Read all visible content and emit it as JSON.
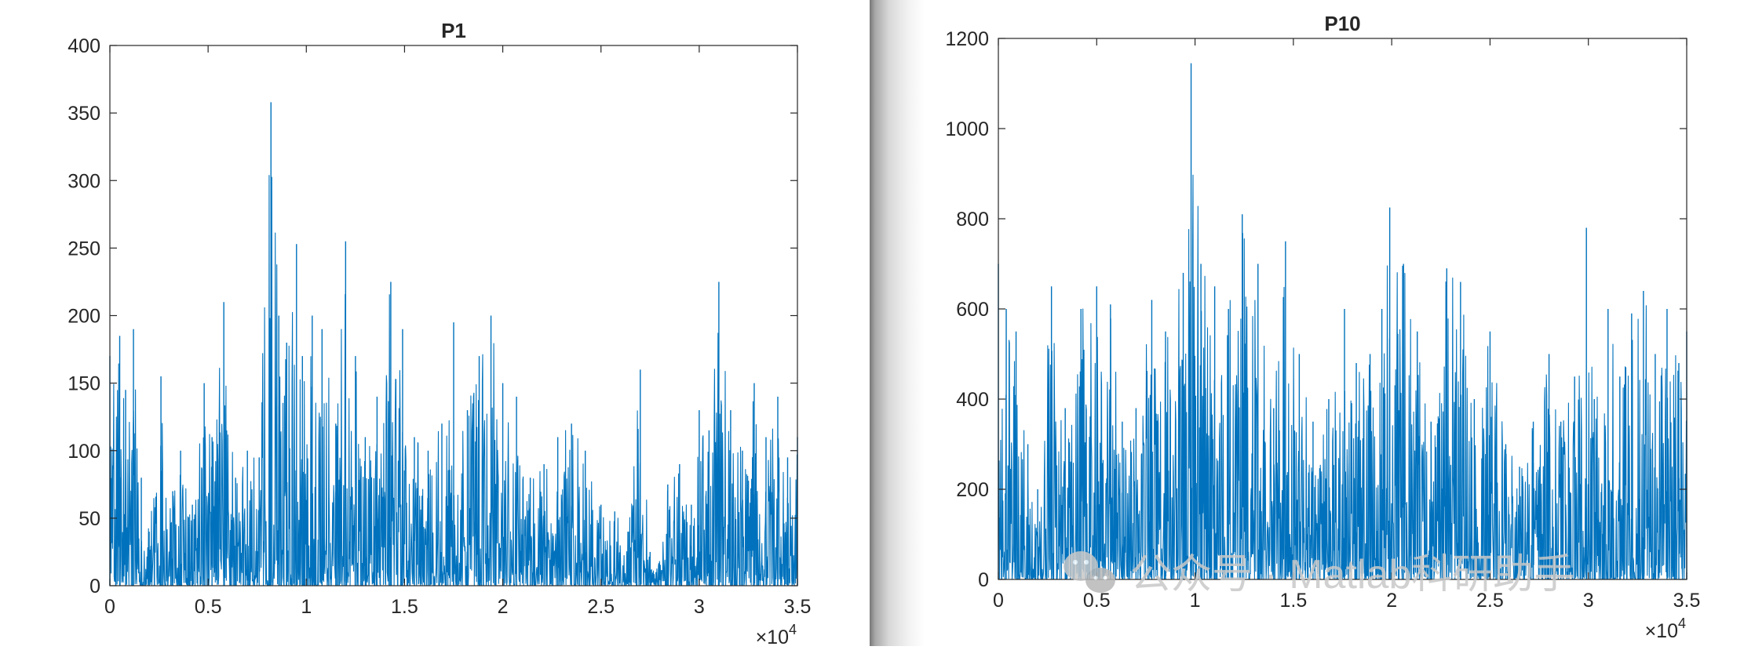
{
  "chart_data": [
    {
      "type": "line",
      "title": "P1",
      "xlabel": "",
      "ylabel": "",
      "xlim": [
        0,
        35000
      ],
      "ylim": [
        0,
        400
      ],
      "x_tick_labels": [
        "0",
        "0.5",
        "1",
        "1.5",
        "2",
        "2.5",
        "3",
        "3.5"
      ],
      "x_tick_values": [
        0,
        5000,
        10000,
        15000,
        20000,
        25000,
        30000,
        35000
      ],
      "x_exponent_label": "×10",
      "x_exponent_power": "4",
      "y_tick_labels": [
        "0",
        "50",
        "100",
        "150",
        "200",
        "250",
        "300",
        "350",
        "400"
      ],
      "y_tick_values": [
        0,
        50,
        100,
        150,
        200,
        250,
        300,
        350,
        400
      ],
      "grid": false,
      "color": "#0072BD",
      "series": [
        {
          "x": [
            0,
            500,
            800,
            1200,
            1600,
            2000,
            2600,
            3200,
            3600,
            4200,
            4800,
            5200,
            5800,
            6400,
            7000,
            7600,
            8200,
            8600,
            9000,
            9500,
            9800,
            10300,
            10800,
            11500,
            12000,
            12500,
            13000,
            13600,
            14300,
            14900,
            15500,
            16200,
            16900,
            17500,
            18200,
            18800,
            19400,
            20000,
            20700,
            21400,
            22100,
            22800,
            23500,
            24200,
            25000,
            25700,
            26400,
            27000,
            27500,
            27800,
            28400,
            29000,
            29600,
            30000,
            30500,
            31000,
            31600,
            32200,
            32800,
            33400,
            34000,
            34500,
            35000
          ],
          "y": [
            170,
            185,
            145,
            190,
            80,
            40,
            155,
            70,
            100,
            60,
            150,
            110,
            210,
            80,
            100,
            95,
            358,
            200,
            180,
            253,
            170,
            200,
            190,
            120,
            255,
            170,
            110,
            140,
            225,
            190,
            110,
            100,
            120,
            195,
            130,
            170,
            200,
            150,
            140,
            80,
            90,
            110,
            120,
            100,
            60,
            55,
            40,
            160,
            25,
            10,
            75,
            90,
            60,
            130,
            115,
            225,
            130,
            100,
            150,
            110,
            140,
            95,
            110
          ]
        }
      ]
    },
    {
      "type": "line",
      "title": "P10",
      "xlabel": "",
      "ylabel": "",
      "xlim": [
        0,
        35000
      ],
      "ylim": [
        0,
        1200
      ],
      "x_tick_labels": [
        "0",
        "0.5",
        "1",
        "1.5",
        "2",
        "2.5",
        "3",
        "3.5"
      ],
      "x_tick_values": [
        0,
        5000,
        10000,
        15000,
        20000,
        25000,
        30000,
        35000
      ],
      "x_exponent_label": "×10",
      "x_exponent_power": "4",
      "y_tick_labels": [
        "0",
        "200",
        "400",
        "600",
        "800",
        "1000",
        "1200"
      ],
      "y_tick_values": [
        0,
        200,
        400,
        600,
        800,
        1000,
        1200
      ],
      "grid": false,
      "color": "#0072BD",
      "series": [
        {
          "x": [
            0,
            400,
            900,
            1500,
            2000,
            2700,
            3400,
            4200,
            5000,
            5700,
            6300,
            7000,
            7800,
            8500,
            9400,
            9800,
            10300,
            11000,
            11700,
            12400,
            13200,
            14000,
            14600,
            15300,
            16000,
            16800,
            17600,
            18200,
            18900,
            19500,
            19900,
            20600,
            21300,
            22000,
            22800,
            23500,
            24200,
            25000,
            25800,
            26500,
            27200,
            28000,
            28600,
            29300,
            29900,
            30300,
            31000,
            31600,
            32200,
            32800,
            33400,
            34000,
            34600,
            35000
          ],
          "y": [
            700,
            600,
            550,
            300,
            200,
            650,
            380,
            600,
            650,
            610,
            350,
            380,
            620,
            550,
            680,
            1145,
            700,
            650,
            600,
            810,
            700,
            380,
            750,
            500,
            350,
            400,
            600,
            480,
            500,
            600,
            825,
            700,
            550,
            350,
            690,
            660,
            400,
            550,
            300,
            250,
            350,
            500,
            350,
            450,
            780,
            400,
            600,
            450,
            590,
            640,
            500,
            600,
            480,
            550
          ]
        }
      ]
    }
  ],
  "watermark": {
    "text": "公众号 · Matlab科研助手",
    "icon": "wechat-icon"
  }
}
